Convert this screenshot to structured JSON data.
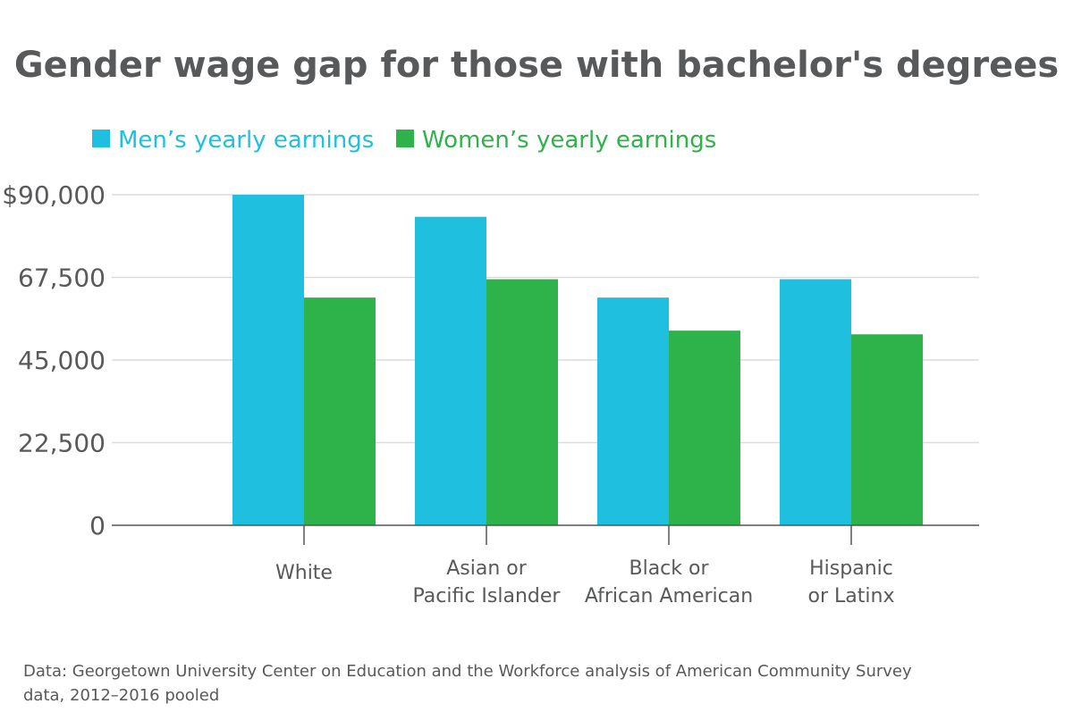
{
  "chart_data": {
    "type": "bar",
    "title": "Gender wage gap for those with bachelor's degrees",
    "categories": [
      [
        "White"
      ],
      [
        "Asian or",
        "Pacific Islander"
      ],
      [
        "Black or",
        "African American"
      ],
      [
        "Hispanic",
        "or Latinx"
      ]
    ],
    "series": [
      {
        "name": "Men’s yearly earnings",
        "color": "#1fc0df",
        "values": [
          90000,
          84000,
          62000,
          67000
        ]
      },
      {
        "name": "Women’s yearly earnings",
        "color": "#2db34a",
        "values": [
          62000,
          67000,
          53000,
          52000
        ]
      }
    ],
    "ylim": [
      0,
      90000
    ],
    "yticks": [
      0,
      22500,
      45000,
      67500,
      90000
    ],
    "ytick_labels": [
      "0",
      "22,500",
      "45,000",
      "67,500",
      "$90,000"
    ],
    "grid": true,
    "legend_position": "top-left",
    "source": [
      "Data: Georgetown University Center on Education and the Workforce analysis of American Community Survey",
      "data, 2012–2016 pooled"
    ]
  }
}
